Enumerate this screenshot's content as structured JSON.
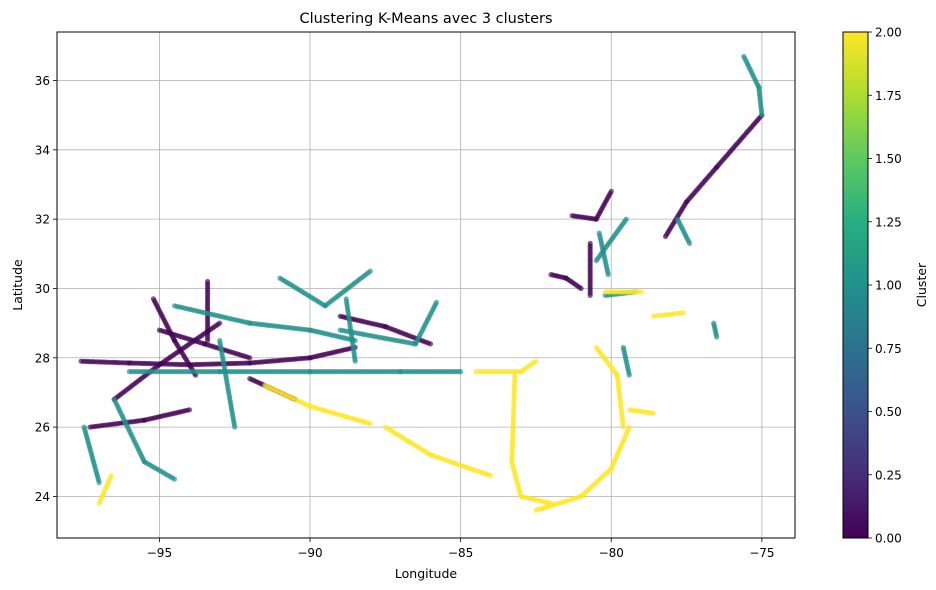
{
  "chart_data": {
    "type": "scatter",
    "title": "Clustering K-Means avec 3 clusters",
    "xlabel": "Longitude",
    "ylabel": "Latitude",
    "xlim": [
      -98.4,
      -73.9
    ],
    "ylim": [
      22.8,
      37.4
    ],
    "xticks": [
      -95,
      -90,
      -85,
      -80,
      -75
    ],
    "yticks": [
      24,
      26,
      28,
      30,
      32,
      34,
      36
    ],
    "grid": true,
    "colorbar": {
      "label": "Cluster",
      "range": [
        0.0,
        2.0
      ],
      "ticks": [
        "0.00",
        "0.25",
        "0.50",
        "0.75",
        "1.00",
        "1.25",
        "1.50",
        "1.75",
        "2.00"
      ],
      "colormap": "viridis"
    },
    "series": [
      {
        "cluster": 0,
        "color": "#440154",
        "tracks": [
          [
            [
              -97.6,
              27.9
            ],
            [
              -96.0,
              27.85
            ],
            [
              -94.0,
              27.8
            ],
            [
              -92.0,
              27.85
            ],
            [
              -90.0,
              28.0
            ],
            [
              -88.5,
              28.3
            ]
          ],
          [
            [
              -97.3,
              26.0
            ],
            [
              -95.5,
              26.2
            ],
            [
              -94.0,
              26.5
            ]
          ],
          [
            [
              -95.0,
              28.8
            ],
            [
              -93.5,
              28.4
            ],
            [
              -92.0,
              28.0
            ]
          ],
          [
            [
              -96.5,
              26.8
            ],
            [
              -95.0,
              27.8
            ],
            [
              -93.0,
              29.0
            ]
          ],
          [
            [
              -95.2,
              29.7
            ],
            [
              -94.5,
              28.5
            ],
            [
              -93.8,
              27.5
            ]
          ],
          [
            [
              -89.0,
              29.2
            ],
            [
              -87.5,
              28.9
            ],
            [
              -86.0,
              28.4
            ]
          ],
          [
            [
              -92.0,
              27.4
            ],
            [
              -90.5,
              26.8
            ]
          ],
          [
            [
              -93.4,
              30.2
            ],
            [
              -93.4,
              28.5
            ]
          ],
          [
            [
              -80.7,
              31.3
            ],
            [
              -80.7,
              29.8
            ]
          ],
          [
            [
              -81.3,
              32.1
            ],
            [
              -80.5,
              32.0
            ],
            [
              -80.0,
              32.8
            ]
          ],
          [
            [
              -82.0,
              30.4
            ],
            [
              -81.5,
              30.3
            ],
            [
              -81.0,
              30.0
            ]
          ],
          [
            [
              -78.2,
              31.5
            ],
            [
              -77.5,
              32.5
            ],
            [
              -76.5,
              33.5
            ],
            [
              -75.0,
              35.0
            ]
          ]
        ]
      },
      {
        "cluster": 1,
        "color": "#21918c",
        "tracks": [
          [
            [
              -97.5,
              26.0
            ],
            [
              -97.0,
              24.4
            ]
          ],
          [
            [
              -96.5,
              26.8
            ],
            [
              -95.5,
              25.0
            ],
            [
              -94.5,
              24.5
            ]
          ],
          [
            [
              -96.0,
              27.6
            ],
            [
              -93.0,
              27.6
            ],
            [
              -90.0,
              27.6
            ],
            [
              -87.0,
              27.6
            ],
            [
              -85.0,
              27.6
            ]
          ],
          [
            [
              -93.0,
              28.5
            ],
            [
              -92.5,
              26.0
            ]
          ],
          [
            [
              -94.5,
              29.5
            ],
            [
              -92.0,
              29.0
            ],
            [
              -90.0,
              28.8
            ],
            [
              -88.5,
              28.5
            ]
          ],
          [
            [
              -91.0,
              30.3
            ],
            [
              -89.5,
              29.5
            ],
            [
              -88.0,
              30.5
            ]
          ],
          [
            [
              -89.0,
              28.8
            ],
            [
              -86.5,
              28.4
            ],
            [
              -85.8,
              29.6
            ]
          ],
          [
            [
              -88.8,
              29.7
            ],
            [
              -88.5,
              27.9
            ]
          ],
          [
            [
              -80.2,
              29.8
            ],
            [
              -79.2,
              29.9
            ]
          ],
          [
            [
              -80.4,
              31.6
            ],
            [
              -80.1,
              30.4
            ]
          ],
          [
            [
              -79.5,
              32.0
            ],
            [
              -80.5,
              30.8
            ]
          ],
          [
            [
              -75.6,
              36.7
            ],
            [
              -75.1,
              35.8
            ],
            [
              -75.0,
              35.0
            ]
          ],
          [
            [
              -79.6,
              28.3
            ],
            [
              -79.4,
              27.5
            ]
          ],
          [
            [
              -77.8,
              32.0
            ],
            [
              -77.4,
              31.3
            ]
          ],
          [
            [
              -76.6,
              29.0
            ],
            [
              -76.5,
              28.6
            ]
          ]
        ]
      },
      {
        "cluster": 2,
        "color": "#fde725",
        "tracks": [
          [
            [
              -91.5,
              27.2
            ],
            [
              -90.0,
              26.6
            ],
            [
              -88.0,
              26.1
            ]
          ],
          [
            [
              -87.5,
              26.0
            ],
            [
              -86.0,
              25.2
            ],
            [
              -84.0,
              24.6
            ]
          ],
          [
            [
              -84.5,
              27.6
            ],
            [
              -83.0,
              27.6
            ],
            [
              -82.5,
              27.9
            ]
          ],
          [
            [
              -83.2,
              27.5
            ],
            [
              -83.3,
              25.0
            ],
            [
              -83.0,
              24.0
            ],
            [
              -82.0,
              23.8
            ]
          ],
          [
            [
              -82.5,
              23.6
            ],
            [
              -81.0,
              24.0
            ],
            [
              -80.0,
              24.8
            ],
            [
              -79.4,
              26.0
            ]
          ],
          [
            [
              -80.5,
              28.3
            ],
            [
              -79.8,
              27.5
            ],
            [
              -79.6,
              26.0
            ]
          ],
          [
            [
              -79.4,
              26.5
            ],
            [
              -78.6,
              26.4
            ]
          ],
          [
            [
              -97.0,
              23.8
            ],
            [
              -96.6,
              24.6
            ]
          ],
          [
            [
              -80.2,
              29.9
            ],
            [
              -79.0,
              29.9
            ]
          ],
          [
            [
              -78.6,
              29.2
            ],
            [
              -77.6,
              29.3
            ]
          ]
        ]
      }
    ]
  }
}
